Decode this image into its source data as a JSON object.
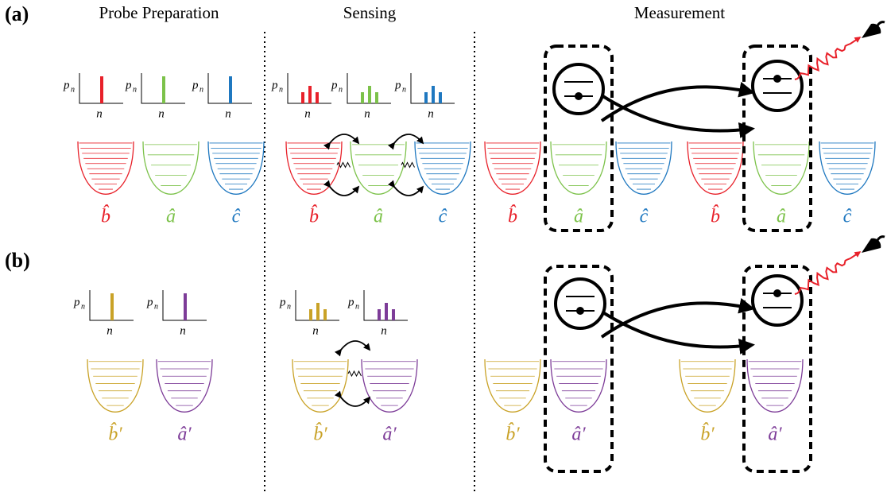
{
  "headers": [
    "Probe Preparation",
    "Sensing",
    "Measurement"
  ],
  "histogram_axis": {
    "y": "p",
    "y_subscript": "n",
    "x": "n"
  },
  "panels": [
    {
      "label": "(a)",
      "modes": [
        {
          "label": "b̂",
          "color": "#e8212a"
        },
        {
          "label": "â",
          "color": "#7cc24a"
        },
        {
          "label": "ĉ",
          "color": "#1f78c0"
        }
      ]
    },
    {
      "label": "(b)",
      "modes": [
        {
          "label": "b̂′",
          "color": "#c9a227"
        },
        {
          "label": "â′",
          "color": "#7d3c98"
        }
      ]
    }
  ]
}
